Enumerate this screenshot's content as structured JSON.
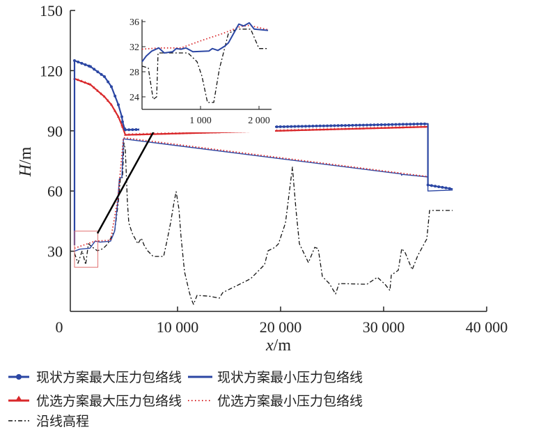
{
  "chart_data": {
    "type": "line",
    "xlabel_var": "x",
    "xlabel_unit": "/m",
    "ylabel_var": "H",
    "ylabel_unit": "/m",
    "xlim": [
      0,
      40000
    ],
    "ylim": [
      0,
      150
    ],
    "x_ticks": [
      0,
      10000,
      20000,
      30000,
      40000
    ],
    "x_tick_labels": [
      "0",
      "10 000",
      "20 000",
      "30 000",
      "40 000"
    ],
    "y_ticks": [
      30,
      60,
      90,
      120,
      150
    ],
    "y_tick_labels": [
      "30",
      "60",
      "90",
      "120",
      "150"
    ],
    "colors": {
      "blue": "#2b46a3",
      "red": "#d9282b",
      "black": "#111111",
      "zoombox": "#e07070"
    },
    "series": [
      {
        "name": "现状方案最大压力包络线",
        "color": "#2b46a3",
        "style": "solid-circle",
        "x": [
          0,
          0,
          1554,
          2905,
          3581,
          4257,
          4595,
          4662,
          4865,
          4932,
          34300,
          34300,
          36700
        ],
        "y": [
          33,
          125,
          122,
          117,
          112,
          103,
          97,
          94.5,
          91,
          90.5,
          93.5,
          63,
          61
        ]
      },
      {
        "name": "现状方案最小压力包络线",
        "color": "#2b46a3",
        "style": "solid",
        "x": [
          0,
          500,
          1500,
          2000,
          2500,
          3500,
          3900,
          4200,
          4350,
          4600,
          4750,
          31700,
          31750,
          31800,
          34300,
          34300,
          36700
        ],
        "y": [
          30,
          31,
          31.5,
          35,
          34.5,
          35,
          40,
          55,
          66,
          67,
          86,
          68.5,
          67.8,
          68.3,
          67,
          60,
          60.5
        ]
      },
      {
        "name": "优选方案最大压力包络线",
        "color": "#d9282b",
        "style": "solid-triangle",
        "x": [
          0,
          1554,
          2905,
          3581,
          4257,
          4662,
          4932,
          34300
        ],
        "y": [
          116,
          113,
          107,
          103,
          97,
          92,
          88,
          92
        ]
      },
      {
        "name": "优选方案最小压力包络线",
        "color": "#d9282b",
        "style": "dotted",
        "x": [
          0,
          2000,
          3500,
          4200,
          4750,
          34300
        ],
        "y": [
          31.5,
          35,
          35.5,
          56,
          86.6,
          67.2
        ]
      },
      {
        "name": "沿线高程",
        "color": "#111111",
        "style": "dashdot",
        "x": [
          0,
          338,
          743,
          1081,
          1351,
          1757,
          2230,
          2770,
          3243,
          3919,
          4257,
          4459,
          4662,
          4797,
          4932,
          5135,
          5270,
          5608,
          6149,
          6486,
          6757,
          7095,
          7635,
          8649,
          8986,
          9324,
          9662,
          9865,
          10135,
          10338,
          10676,
          11149,
          11351,
          11554,
          11892,
          13041,
          14054,
          14392,
          15743,
          17095,
          18446,
          18784,
          19459,
          19797,
          20473,
          21149,
          21486,
          21824,
          22703,
          23311,
          23649,
          24054,
          24730,
          25338,
          25676,
          28378,
          29392,
          30135,
          30608,
          30743,
          31419,
          31757,
          32095,
          32770,
          33311,
          34189,
          34459,
          36689
        ],
        "y": [
          29,
          24,
          30.2,
          23.3,
          33.7,
          31.9,
          30.2,
          31.3,
          33.7,
          40.6,
          54.5,
          66.7,
          66.7,
          84,
          80.6,
          54.5,
          44.1,
          38.9,
          33.7,
          36.5,
          33,
          30.2,
          27.4,
          27.4,
          35.4,
          44.1,
          54.5,
          59.7,
          51,
          37.2,
          19.8,
          9.4,
          5.9,
          3.5,
          8,
          7.6,
          6.6,
          9.4,
          12.8,
          16.3,
          23.3,
          30.2,
          31.9,
          33.7,
          44.1,
          71.9,
          51,
          33.7,
          24.3,
          31.9,
          31.3,
          17.4,
          13.9,
          8.7,
          13.9,
          13.5,
          17,
          13.5,
          10.4,
          18.1,
          20.5,
          31.3,
          29.2,
          20.8,
          27.8,
          36.1,
          50.3,
          50.3
        ]
      }
    ],
    "zoom_region": {
      "x": [
        0,
        2200
      ],
      "y": [
        22,
        40
      ]
    },
    "inset": {
      "xlim": [
        0,
        2200
      ],
      "ylim": [
        22,
        36
      ],
      "x_ticks": [
        1000,
        2000
      ],
      "x_tick_labels": [
        "1 000",
        "2 000"
      ],
      "y_ticks": [
        24,
        28,
        32,
        36
      ],
      "y_tick_labels": [
        "24",
        "28",
        "32",
        "36"
      ],
      "series": [
        {
          "name": "现状方案最小压力包络线",
          "color": "#2b46a3",
          "style": "solid",
          "x": [
            0,
            71,
            167,
            286,
            381,
            524,
            583,
            667,
            750,
            869,
            1143,
            1202,
            1298,
            1417,
            1476,
            1655,
            1738,
            1833,
            1917,
            2155
          ],
          "y": [
            29.6,
            30.5,
            31.3,
            31.8,
            31,
            31.2,
            31.7,
            31.6,
            31.8,
            31.2,
            31.3,
            31.7,
            31.4,
            32.1,
            32.6,
            35.6,
            35.3,
            35.8,
            34.8,
            34.6
          ]
        },
        {
          "name": "优选方案最小压力包络线",
          "color": "#d9282b",
          "style": "dotted",
          "x": [
            0,
            286,
            667,
            1024,
            1381,
            1679,
            1833,
            2155
          ],
          "y": [
            31.6,
            31.8,
            31.8,
            33,
            34.1,
            35.2,
            35.4,
            34.7
          ]
        },
        {
          "name": "沿线高程",
          "color": "#111111",
          "style": "dashdot",
          "x": [
            0,
            107,
            190,
            250,
            274,
            786,
            940,
            1024,
            1119,
            1226,
            1321,
            1476,
            1619,
            1857,
            2000,
            2155
          ],
          "y": [
            28.9,
            28.6,
            23.6,
            24,
            31,
            31,
            29.6,
            27.3,
            23.1,
            23.1,
            28.4,
            34.1,
            34.8,
            34.8,
            31.7,
            31.7
          ]
        }
      ]
    },
    "legend": [
      "现状方案最大压力包络线",
      "现状方案最小压力包络线",
      "优选方案最大压力包络线",
      "优选方案最小压力包络线",
      "沿线高程"
    ],
    "legend_position": "bottom"
  }
}
